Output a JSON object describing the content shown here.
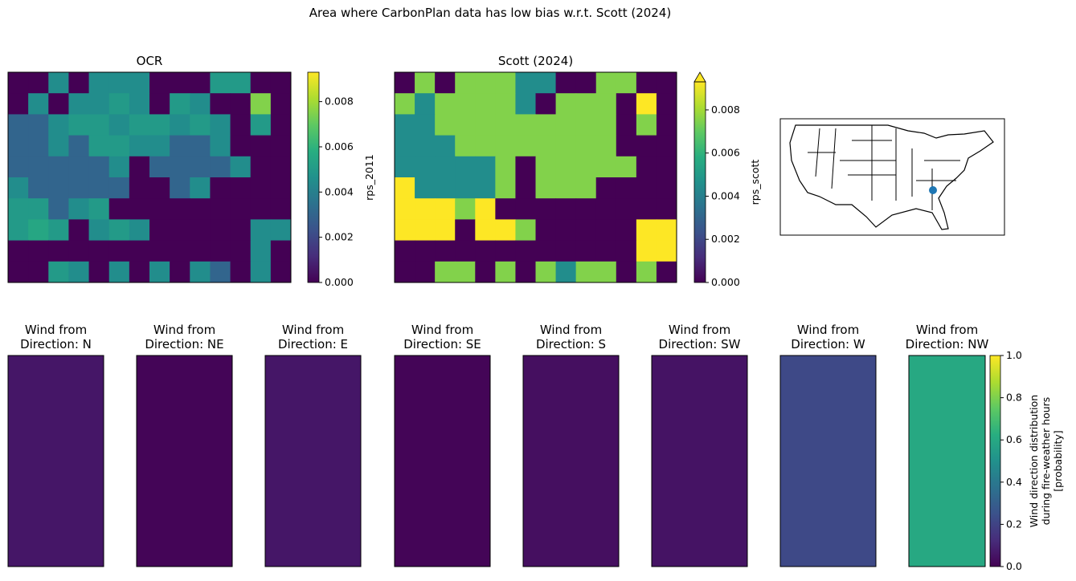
{
  "title": "Area where CarbonPlan data has low bias w.r.t. Scott (2024)",
  "chart_data": [
    {
      "type": "heatmap",
      "title": "OCR",
      "colorbar_label": "rps_2011",
      "clim": [
        0,
        0.0093
      ],
      "cticks": [
        {
          "value": 0,
          "label": "0.000"
        },
        {
          "value": 0.002,
          "label": "0.002"
        },
        {
          "value": 0.004,
          "label": "0.004"
        },
        {
          "value": 0.006,
          "label": "0.006"
        },
        {
          "value": 0.008,
          "label": "0.008"
        }
      ],
      "values": [
        [
          0,
          0,
          0.0045,
          0,
          0.0045,
          0.0045,
          0.0045,
          0,
          0,
          0,
          0.005,
          0.005,
          0,
          0
        ],
        [
          0,
          0.0045,
          0,
          0.0045,
          0.0045,
          0.005,
          0.0045,
          0,
          0.005,
          0.0045,
          0,
          0,
          0.0075,
          0
        ],
        [
          0.003,
          0.003,
          0.0045,
          0.005,
          0.005,
          0.0045,
          0.005,
          0.005,
          0.0045,
          0.005,
          0.0045,
          0,
          0.005,
          0
        ],
        [
          0.003,
          0.003,
          0.0045,
          0.003,
          0.005,
          0.005,
          0.0045,
          0.0045,
          0.003,
          0.003,
          0.0045,
          0,
          0,
          0
        ],
        [
          0.003,
          0.003,
          0.003,
          0.003,
          0.003,
          0.0045,
          0,
          0.003,
          0.003,
          0.003,
          0.003,
          0.0045,
          0,
          0
        ],
        [
          0.0045,
          0.003,
          0.003,
          0.003,
          0.003,
          0.003,
          0,
          0,
          0.003,
          0.0045,
          0,
          0,
          0,
          0
        ],
        [
          0.005,
          0.005,
          0.003,
          0.0045,
          0.005,
          0,
          0,
          0,
          0,
          0,
          0,
          0,
          0,
          0
        ],
        [
          0.005,
          0.0055,
          0.005,
          0,
          0.0045,
          0.005,
          0.0045,
          0,
          0,
          0,
          0,
          0,
          0.0045,
          0.0045
        ],
        [
          0,
          0,
          0,
          0,
          0,
          0,
          0,
          0,
          0,
          0,
          0,
          0,
          0.0045,
          0
        ],
        [
          0,
          0,
          0.005,
          0.0045,
          0,
          0.0045,
          0,
          0.0045,
          0,
          0.0045,
          0.003,
          0,
          0.0045,
          0
        ]
      ]
    },
    {
      "type": "heatmap",
      "title": "Scott (2024)",
      "colorbar_label": "rps_scott",
      "clim": [
        0,
        0.0093
      ],
      "extend": "max",
      "cticks": [
        {
          "value": 0,
          "label": "0.000"
        },
        {
          "value": 0.002,
          "label": "0.002"
        },
        {
          "value": 0.004,
          "label": "0.004"
        },
        {
          "value": 0.006,
          "label": "0.006"
        },
        {
          "value": 0.008,
          "label": "0.008"
        }
      ],
      "values": [
        [
          0,
          0.0075,
          0,
          0.0075,
          0.0075,
          0.0075,
          0.0045,
          0.0045,
          0,
          0,
          0.0075,
          0.0075,
          0,
          0
        ],
        [
          0.0075,
          0.0045,
          0.0075,
          0.0075,
          0.0075,
          0.0075,
          0.0045,
          0,
          0.0075,
          0.0075,
          0.0075,
          0,
          0.0095,
          0
        ],
        [
          0.0045,
          0.0045,
          0.0075,
          0.0075,
          0.0075,
          0.0075,
          0.0075,
          0.0075,
          0.0075,
          0.0075,
          0.0075,
          0,
          0.0075,
          0
        ],
        [
          0.0045,
          0.0045,
          0.0045,
          0.0075,
          0.0075,
          0.0075,
          0.0075,
          0.0075,
          0.0075,
          0.0075,
          0.0075,
          0,
          0,
          0
        ],
        [
          0.0045,
          0.0045,
          0.0045,
          0.0045,
          0.0045,
          0.0075,
          0,
          0.0075,
          0.0075,
          0.0075,
          0.0075,
          0.0075,
          0,
          0
        ],
        [
          0.0095,
          0.0045,
          0.0045,
          0.0045,
          0.0045,
          0.0075,
          0,
          0.0075,
          0.0075,
          0.0075,
          0,
          0,
          0,
          0
        ],
        [
          0.0095,
          0.0095,
          0.0095,
          0.0075,
          0.0095,
          0,
          0,
          0,
          0,
          0,
          0,
          0,
          0,
          0
        ],
        [
          0.0095,
          0.0095,
          0.0095,
          0,
          0.0095,
          0.0095,
          0.0075,
          0,
          0,
          0,
          0,
          0,
          0.0095,
          0.0095
        ],
        [
          0,
          0,
          0,
          0,
          0,
          0,
          0,
          0,
          0,
          0,
          0,
          0,
          0.0095,
          0.0095
        ],
        [
          0,
          0,
          0.0075,
          0.0075,
          0,
          0.0075,
          0,
          0.0075,
          0.0045,
          0.0075,
          0.0075,
          0,
          0.0075,
          0
        ]
      ]
    },
    {
      "type": "tiles",
      "categories": [
        "Wind from\nDirection: N",
        "Wind from\nDirection: NE",
        "Wind from\nDirection: E",
        "Wind from\nDirection: SE",
        "Wind from\nDirection: S",
        "Wind from\nDirection: SW",
        "Wind from\nDirection: W",
        "Wind from\nDirection: NW"
      ],
      "values": [
        0.06,
        0.01,
        0.06,
        0.01,
        0.04,
        0.05,
        0.22,
        0.6
      ],
      "colorbar_label": "Wind direction distribution\nduring fire-weather hours\n[probability]",
      "clim": [
        0,
        1
      ],
      "cticks": [
        {
          "value": 0,
          "label": "0.0"
        },
        {
          "value": 0.2,
          "label": "0.2"
        },
        {
          "value": 0.4,
          "label": "0.4"
        },
        {
          "value": 0.6,
          "label": "0.6"
        },
        {
          "value": 0.8,
          "label": "0.8"
        },
        {
          "value": 1,
          "label": "1.0"
        }
      ]
    }
  ]
}
